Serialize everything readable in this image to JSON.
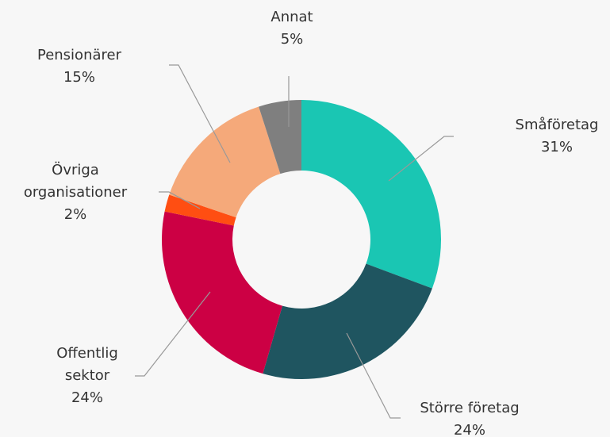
{
  "chart_data": {
    "type": "donut",
    "categories": [
      "Småföretag",
      "Större företag",
      "Offentlig sektor",
      "Övriga organisationer",
      "Pensionärer",
      "Annat"
    ],
    "values": [
      31,
      24,
      24,
      2,
      15,
      5
    ],
    "value_labels": [
      "31%",
      "24%",
      "24%",
      "2%",
      "15%",
      "5%"
    ],
    "colors": [
      "#1ac6b3",
      "#1f5560",
      "#cc0044",
      "#ff4e12",
      "#f5a97a",
      "#7f7f7f"
    ]
  }
}
